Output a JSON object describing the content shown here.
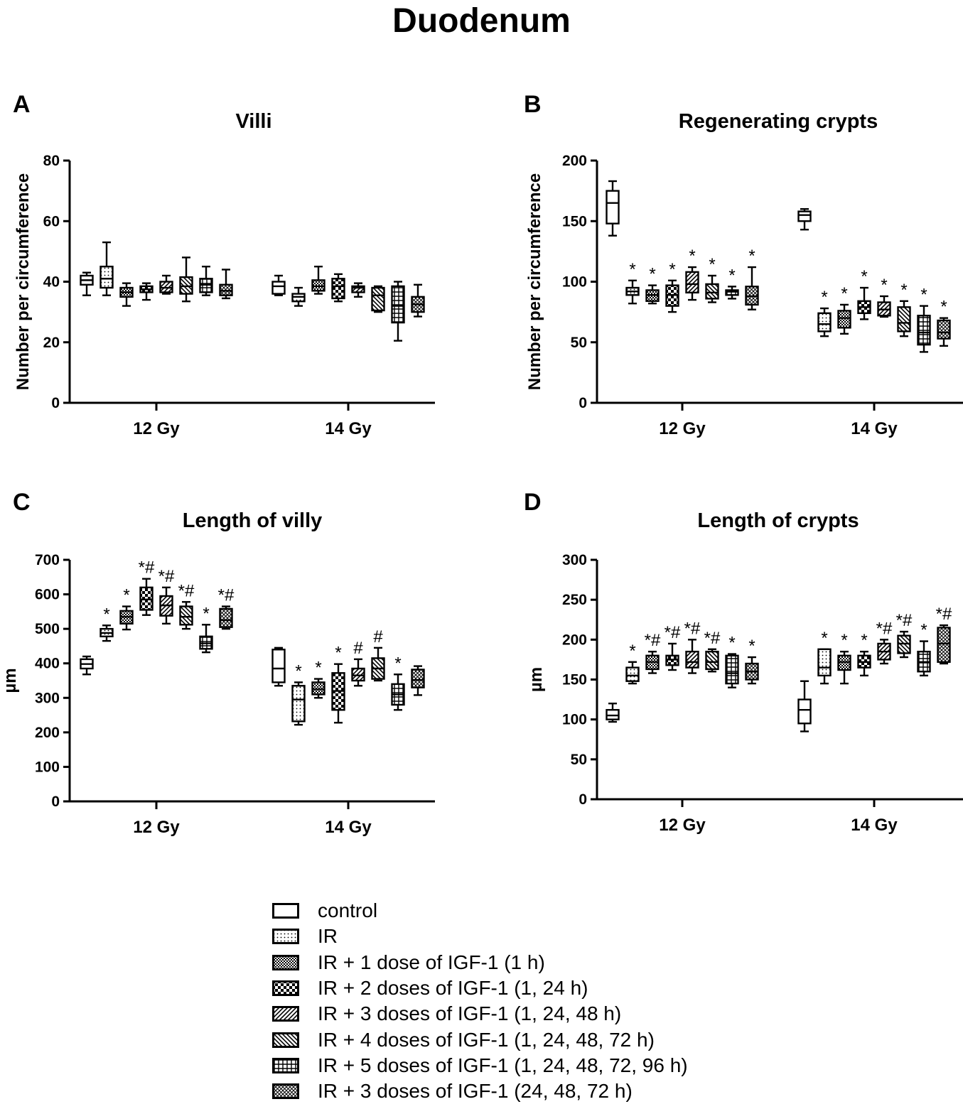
{
  "figure": {
    "title": "Duodenum"
  },
  "legend": {
    "items": [
      {
        "label": "control",
        "pattern": "none"
      },
      {
        "label": "IR",
        "pattern": "dots"
      },
      {
        "label": "IR + 1 dose of IGF-1 (1 h)",
        "pattern": "finecheck"
      },
      {
        "label": "IR + 2 doses of IGF-1 (1, 24 h)",
        "pattern": "check"
      },
      {
        "label": "IR + 3 doses of IGF-1 (1, 24, 48 h)",
        "pattern": "diagR"
      },
      {
        "label": "IR + 4 doses of IGF-1 (1, 24, 48, 72 h)",
        "pattern": "diagL"
      },
      {
        "label": "IR + 5 doses of IGF-1 (1, 24, 48, 72, 96 h)",
        "pattern": "grid"
      },
      {
        "label": "IR + 3 doses of IGF-1 (24, 48, 72 h)",
        "pattern": "crosshatch"
      }
    ]
  },
  "chart_data": [
    {
      "panel": "A",
      "title": "Villi",
      "type": "box",
      "ylabel": "Number per circumference",
      "ylim": [
        0,
        80
      ],
      "yticks": [
        0,
        20,
        40,
        60,
        80
      ],
      "categories": [
        "12 Gy",
        "14 Gy"
      ],
      "groups": [
        {
          "category": "12 Gy",
          "boxes": [
            {
              "series": "control",
              "min": 35.5,
              "q1": 39,
              "median": 40.5,
              "q3": 42,
              "max": 43,
              "annotation": ""
            },
            {
              "series": "IR",
              "min": 35.5,
              "q1": 38,
              "median": 41,
              "q3": 45,
              "max": 53,
              "annotation": ""
            },
            {
              "series": "IR + 1 dose of IGF-1 (1 h)",
              "min": 32,
              "q1": 35,
              "median": 36.5,
              "q3": 38,
              "max": 39.5,
              "annotation": ""
            },
            {
              "series": "IR + 2 doses of IGF-1 (1, 24 h)",
              "min": 34,
              "q1": 36.5,
              "median": 37.5,
              "q3": 38.5,
              "max": 39.5,
              "annotation": ""
            },
            {
              "series": "IR + 3 doses of IGF-1 (1, 24, 48 h)",
              "min": 36,
              "q1": 36.5,
              "median": 38,
              "q3": 40,
              "max": 42,
              "annotation": ""
            },
            {
              "series": "IR + 4 doses of IGF-1 (1, 24, 48, 72 h)",
              "min": 33.5,
              "q1": 36,
              "median": 38.5,
              "q3": 41.5,
              "max": 48,
              "annotation": ""
            },
            {
              "series": "IR + 5 doses of IGF-1 (1, 24, 48, 72, 96 h)",
              "min": 35.5,
              "q1": 36.5,
              "median": 39,
              "q3": 41,
              "max": 45,
              "annotation": ""
            },
            {
              "series": "IR + 3 doses of IGF-1 (24, 48, 72 h)",
              "min": 34.5,
              "q1": 35.5,
              "median": 37,
              "q3": 39,
              "max": 44,
              "annotation": ""
            }
          ]
        },
        {
          "category": "14 Gy",
          "boxes": [
            {
              "series": "control",
              "min": 35.5,
              "q1": 36,
              "median": 38.5,
              "q3": 40,
              "max": 42,
              "annotation": ""
            },
            {
              "series": "IR",
              "min": 32,
              "q1": 33.5,
              "median": 35,
              "q3": 36,
              "max": 38,
              "annotation": ""
            },
            {
              "series": "IR + 1 dose of IGF-1 (1 h)",
              "min": 36,
              "q1": 37,
              "median": 38.5,
              "q3": 40.5,
              "max": 45,
              "annotation": ""
            },
            {
              "series": "IR + 2 doses of IGF-1 (1, 24 h)",
              "min": 33.5,
              "q1": 34.5,
              "median": 38.5,
              "q3": 41,
              "max": 42.5,
              "annotation": ""
            },
            {
              "series": "IR + 3 doses of IGF-1 (1, 24, 48 h)",
              "min": 35,
              "q1": 36.5,
              "median": 38,
              "q3": 38.5,
              "max": 39.5,
              "annotation": ""
            },
            {
              "series": "IR + 4 doses of IGF-1 (1, 24, 48, 72 h)",
              "min": 30,
              "q1": 30.5,
              "median": 35.5,
              "q3": 38,
              "max": 38.5,
              "annotation": ""
            },
            {
              "series": "IR + 5 doses of IGF-1 (1, 24, 48, 72, 96 h)",
              "min": 20.5,
              "q1": 26.5,
              "median": 32,
              "q3": 38.5,
              "max": 40,
              "annotation": ""
            },
            {
              "series": "IR + 3 doses of IGF-1 (24, 48, 72 h)",
              "min": 28.5,
              "q1": 30,
              "median": 32.5,
              "q3": 35,
              "max": 39,
              "annotation": ""
            }
          ]
        }
      ]
    },
    {
      "panel": "B",
      "title": "Regenerating crypts",
      "type": "box",
      "ylabel": "Number per circumference",
      "ylim": [
        0,
        200
      ],
      "yticks": [
        0,
        50,
        100,
        150,
        200
      ],
      "categories": [
        "12 Gy",
        "14 Gy"
      ],
      "groups": [
        {
          "category": "12 Gy",
          "boxes": [
            {
              "series": "control",
              "min": 138,
              "q1": 148,
              "median": 165,
              "q3": 175,
              "max": 183,
              "annotation": ""
            },
            {
              "series": "IR",
              "min": 82,
              "q1": 89,
              "median": 92,
              "q3": 95,
              "max": 101,
              "annotation": "*"
            },
            {
              "series": "IR + 1 dose of IGF-1 (1 h)",
              "min": 82,
              "q1": 84,
              "median": 89,
              "q3": 93,
              "max": 97,
              "annotation": "*"
            },
            {
              "series": "IR + 2 doses of IGF-1 (1, 24 h)",
              "min": 75,
              "q1": 80,
              "median": 89,
              "q3": 97,
              "max": 101,
              "annotation": "*"
            },
            {
              "series": "IR + 3 doses of IGF-1 (1, 24, 48 h)",
              "min": 85,
              "q1": 91,
              "median": 98,
              "q3": 108,
              "max": 112,
              "annotation": "*"
            },
            {
              "series": "IR + 4 doses of IGF-1 (1, 24, 48, 72 h)",
              "min": 83,
              "q1": 86,
              "median": 91,
              "q3": 98,
              "max": 105,
              "annotation": "*"
            },
            {
              "series": "IR + 5 doses of IGF-1 (1, 24, 48, 72, 96 h)",
              "min": 86,
              "q1": 89,
              "median": 92,
              "q3": 93,
              "max": 96,
              "annotation": "*"
            },
            {
              "series": "IR + 3 doses of IGF-1 (24, 48, 72 h)",
              "min": 77,
              "q1": 81,
              "median": 88,
              "q3": 96,
              "max": 112,
              "annotation": "*"
            }
          ]
        },
        {
          "category": "14 Gy",
          "boxes": [
            {
              "series": "control",
              "min": 143,
              "q1": 150,
              "median": 155,
              "q3": 158,
              "max": 160,
              "annotation": ""
            },
            {
              "series": "IR",
              "min": 55,
              "q1": 59,
              "median": 65,
              "q3": 74,
              "max": 78,
              "annotation": "*"
            },
            {
              "series": "IR + 1 dose of IGF-1 (1 h)",
              "min": 57,
              "q1": 62,
              "median": 70,
              "q3": 76,
              "max": 81,
              "annotation": "*"
            },
            {
              "series": "IR + 2 doses of IGF-1 (1, 24 h)",
              "min": 69,
              "q1": 74,
              "median": 79,
              "q3": 84,
              "max": 95,
              "annotation": "*"
            },
            {
              "series": "IR + 3 doses of IGF-1 (1, 24, 48 h)",
              "min": 71,
              "q1": 72,
              "median": 77,
              "q3": 83,
              "max": 88,
              "annotation": "*"
            },
            {
              "series": "IR + 4 doses of IGF-1 (1, 24, 48, 72 h)",
              "min": 55,
              "q1": 59,
              "median": 66,
              "q3": 79,
              "max": 84,
              "annotation": "*"
            },
            {
              "series": "IR + 5 doses of IGF-1 (1, 24, 48, 72, 96 h)",
              "min": 42,
              "q1": 48,
              "median": 58,
              "q3": 72,
              "max": 80,
              "annotation": "*"
            },
            {
              "series": "IR + 3 doses of IGF-1 (24, 48, 72 h)",
              "min": 47,
              "q1": 53,
              "median": 58,
              "q3": 68,
              "max": 70,
              "annotation": "*"
            }
          ]
        }
      ]
    },
    {
      "panel": "C",
      "title": "Length of villy",
      "type": "box",
      "ylabel": "µm",
      "ylim": [
        0,
        700
      ],
      "yticks": [
        0,
        100,
        200,
        300,
        400,
        500,
        600,
        700
      ],
      "categories": [
        "12 Gy",
        "14 Gy"
      ],
      "groups": [
        {
          "category": "12 Gy",
          "boxes": [
            {
              "series": "control",
              "min": 368,
              "q1": 385,
              "median": 398,
              "q3": 412,
              "max": 420,
              "annotation": ""
            },
            {
              "series": "IR",
              "min": 465,
              "q1": 478,
              "median": 488,
              "q3": 500,
              "max": 510,
              "annotation": "*"
            },
            {
              "series": "IR + 1 dose of IGF-1 (1 h)",
              "min": 498,
              "q1": 515,
              "median": 535,
              "q3": 552,
              "max": 565,
              "annotation": "*"
            },
            {
              "series": "IR + 2 doses of IGF-1 (1, 24 h)",
              "min": 540,
              "q1": 555,
              "median": 585,
              "q3": 620,
              "max": 645,
              "annotation": "*#"
            },
            {
              "series": "IR + 3 doses of IGF-1 (1, 24, 48 h)",
              "min": 515,
              "q1": 538,
              "median": 568,
              "q3": 595,
              "max": 620,
              "annotation": "*#"
            },
            {
              "series": "IR + 4 doses of IGF-1 (1, 24, 48, 72 h)",
              "min": 500,
              "q1": 512,
              "median": 535,
              "q3": 565,
              "max": 578,
              "annotation": "*#"
            },
            {
              "series": "IR + 5 doses of IGF-1 (1, 24, 48, 72, 96 h)",
              "min": 432,
              "q1": 442,
              "median": 458,
              "q3": 478,
              "max": 512,
              "annotation": "*"
            },
            {
              "series": "IR + 3 doses of IGF-1 (24, 48, 72 h)",
              "min": 500,
              "q1": 505,
              "median": 525,
              "q3": 558,
              "max": 565,
              "annotation": "*#"
            }
          ]
        },
        {
          "category": "14 Gy",
          "boxes": [
            {
              "series": "control",
              "min": 335,
              "q1": 345,
              "median": 385,
              "q3": 440,
              "max": 445,
              "annotation": ""
            },
            {
              "series": "IR",
              "min": 222,
              "q1": 232,
              "median": 295,
              "q3": 335,
              "max": 345,
              "annotation": "*"
            },
            {
              "series": "IR + 1 dose of IGF-1 (1 h)",
              "min": 300,
              "q1": 310,
              "median": 325,
              "q3": 345,
              "max": 355,
              "annotation": "*"
            },
            {
              "series": "IR + 2 doses of IGF-1 (1, 24 h)",
              "min": 228,
              "q1": 265,
              "median": 320,
              "q3": 372,
              "max": 398,
              "annotation": "*"
            },
            {
              "series": "IR + 3 doses of IGF-1 (1, 24, 48 h)",
              "min": 335,
              "q1": 350,
              "median": 365,
              "q3": 385,
              "max": 412,
              "annotation": "#"
            },
            {
              "series": "IR + 4 doses of IGF-1 (1, 24, 48, 72 h)",
              "min": 350,
              "q1": 355,
              "median": 385,
              "q3": 415,
              "max": 445,
              "annotation": "#"
            },
            {
              "series": "IR + 5 doses of IGF-1 (1, 24, 48, 72, 96 h)",
              "min": 265,
              "q1": 280,
              "median": 310,
              "q3": 340,
              "max": 368,
              "annotation": "*"
            },
            {
              "series": "IR + 3 doses of IGF-1 (24, 48, 72 h)",
              "min": 308,
              "q1": 330,
              "median": 352,
              "q3": 382,
              "max": 392,
              "annotation": ""
            }
          ]
        }
      ]
    },
    {
      "panel": "D",
      "title": "Length of crypts",
      "type": "box",
      "ylabel": "µm",
      "ylim": [
        0,
        300
      ],
      "yticks": [
        0,
        50,
        100,
        150,
        200,
        250,
        300
      ],
      "categories": [
        "12 Gy",
        "14 Gy"
      ],
      "groups": [
        {
          "category": "12 Gy",
          "boxes": [
            {
              "series": "control",
              "min": 97,
              "q1": 100,
              "median": 105,
              "q3": 112,
              "max": 120,
              "annotation": ""
            },
            {
              "series": "IR",
              "min": 145,
              "q1": 148,
              "median": 155,
              "q3": 165,
              "max": 172,
              "annotation": "*"
            },
            {
              "series": "IR + 1 dose of IGF-1 (1 h)",
              "min": 158,
              "q1": 163,
              "median": 172,
              "q3": 180,
              "max": 185,
              "annotation": "*#"
            },
            {
              "series": "IR + 2 doses of IGF-1 (1, 24 h)",
              "min": 162,
              "q1": 168,
              "median": 175,
              "q3": 180,
              "max": 195,
              "annotation": "*#"
            },
            {
              "series": "IR + 3 doses of IGF-1 (1, 24, 48 h)",
              "min": 158,
              "q1": 165,
              "median": 172,
              "q3": 185,
              "max": 200,
              "annotation": "*#"
            },
            {
              "series": "IR + 4 doses of IGF-1 (1, 24, 48, 72 h)",
              "min": 160,
              "q1": 163,
              "median": 172,
              "q3": 185,
              "max": 188,
              "annotation": "*#"
            },
            {
              "series": "IR + 5 doses of IGF-1 (1, 24, 48, 72, 96 h)",
              "min": 140,
              "q1": 145,
              "median": 158,
              "q3": 180,
              "max": 182,
              "annotation": "*"
            },
            {
              "series": "IR + 3 doses of IGF-1 (24, 48, 72 h)",
              "min": 145,
              "q1": 150,
              "median": 160,
              "q3": 170,
              "max": 178,
              "annotation": "*"
            }
          ]
        },
        {
          "category": "14 Gy",
          "boxes": [
            {
              "series": "control",
              "min": 85,
              "q1": 95,
              "median": 112,
              "q3": 125,
              "max": 148,
              "annotation": ""
            },
            {
              "series": "IR",
              "min": 145,
              "q1": 155,
              "median": 165,
              "q3": 188,
              "max": 188,
              "annotation": "*"
            },
            {
              "series": "IR + 1 dose of IGF-1 (1 h)",
              "min": 145,
              "q1": 162,
              "median": 172,
              "q3": 180,
              "max": 185,
              "annotation": "*"
            },
            {
              "series": "IR + 2 doses of IGF-1 (1, 24 h)",
              "min": 155,
              "q1": 165,
              "median": 172,
              "q3": 180,
              "max": 185,
              "annotation": "*"
            },
            {
              "series": "IR + 3 doses of IGF-1 (1, 24, 48 h)",
              "min": 170,
              "q1": 175,
              "median": 185,
              "q3": 195,
              "max": 200,
              "annotation": "*#"
            },
            {
              "series": "IR + 4 doses of IGF-1 (1, 24, 48, 72 h)",
              "min": 178,
              "q1": 183,
              "median": 195,
              "q3": 205,
              "max": 210,
              "annotation": "*#"
            },
            {
              "series": "IR + 5 doses of IGF-1 (1, 24, 48, 72, 96 h)",
              "min": 155,
              "q1": 160,
              "median": 172,
              "q3": 185,
              "max": 198,
              "annotation": "*"
            },
            {
              "series": "IR + 3 doses of IGF-1 (24, 48, 72 h)",
              "min": 170,
              "q1": 172,
              "median": 195,
              "q3": 215,
              "max": 218,
              "annotation": "*#"
            }
          ]
        }
      ]
    }
  ]
}
